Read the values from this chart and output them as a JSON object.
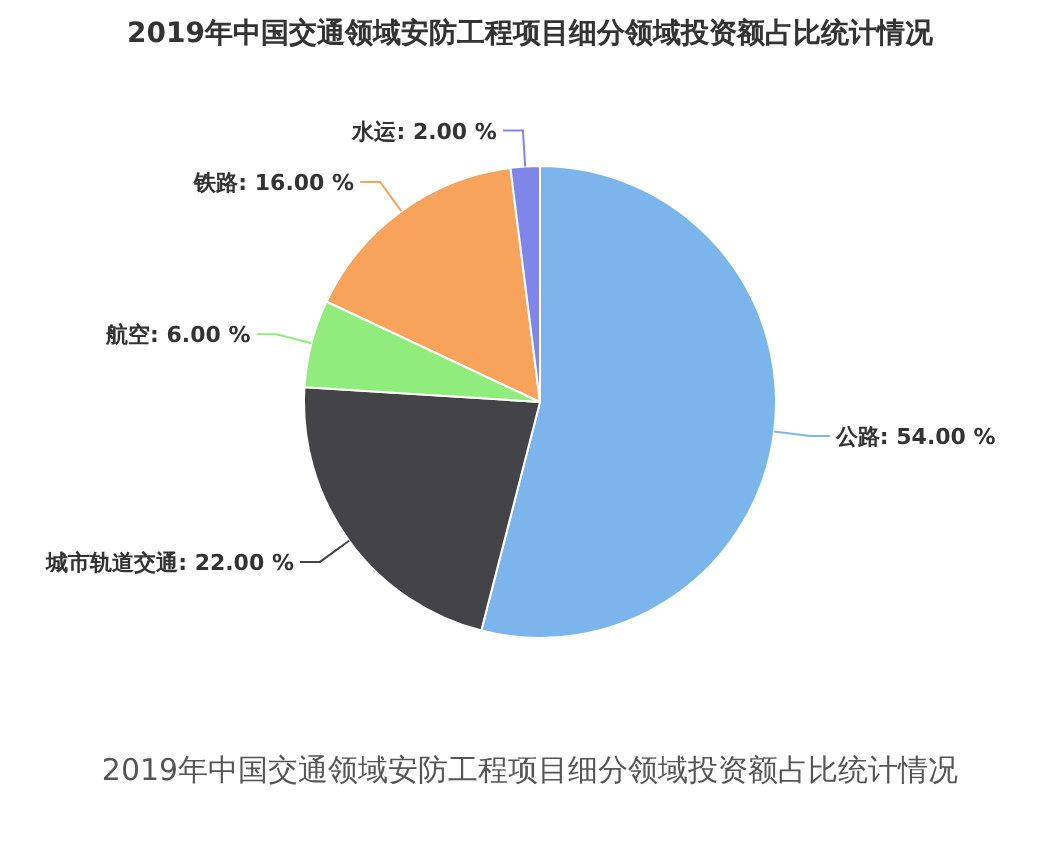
{
  "chart_data": {
    "type": "pie",
    "title": "2019年中国交通领域安防工程项目细分领域投资额占比统计情况",
    "categories": [
      "公路",
      "城市轨道交通",
      "航空",
      "铁路",
      "水运"
    ],
    "values": [
      54,
      22,
      6,
      16,
      2
    ],
    "colors": [
      "#7cb5ec",
      "#434348",
      "#90ed7d",
      "#f7a35c",
      "#8085e9"
    ],
    "value_labels": [
      "54.00 %",
      "22.00 %",
      "6.00 %",
      "16.00 %",
      "2.00 %"
    ],
    "annotations": [
      "2019年中国交通领域安防工程项目细分领域投资额占比统计情况"
    ]
  }
}
